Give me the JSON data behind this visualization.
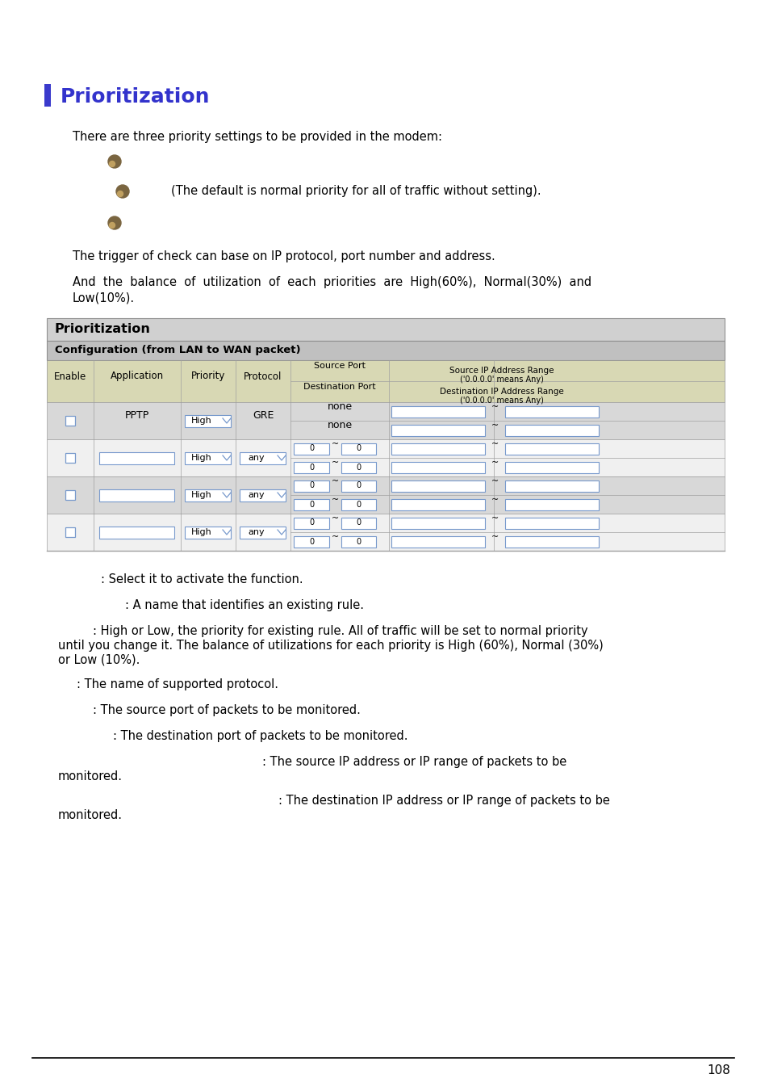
{
  "title": "Prioritization",
  "title_color": "#3333cc",
  "title_marker_color": "#3a3acc",
  "bg_color": "#ffffff",
  "page_number": "108",
  "body_font_size": 10.5,
  "intro_text": "There are three priority settings to be provided in the modem:",
  "bullet_text_2": "(The default is normal priority for all of traffic without setting).",
  "para1": "The trigger of check can base on IP protocol, port number and address.",
  "para2_line1": "And  the  balance  of  utilization  of  each  priorities  are  High(60%),  Normal(30%)  and",
  "para2_line2": "Low(10%).",
  "table_title": "Prioritization",
  "table_subtitle": "Configuration (from LAN to WAN packet)",
  "table_title_bg": "#d0d0d0",
  "table_subtitle_bg": "#c0c0c0",
  "table_header_bg": "#d8d8b4",
  "table_row_bg_odd": "#e0e0e0",
  "table_row_bg_even": "#f0f0f0",
  "table_border_color": "#a0a0a0",
  "input_border_color": "#7799cc",
  "desc_lines": [
    ": Select it to activate the function.",
    ": A name that identifies an existing rule.",
    ": High or Low, the priority for existing rule. All of traffic will be set to normal priority\nuntil you change it. The balance of utilizations for each priority is High (60%), Normal (30%)\nor Low (10%).",
    ": The name of supported protocol.",
    ": The source port of packets to be monitored.",
    ": The destination port of packets to be monitored.",
    ": The source IP address or IP range of packets to be\nmonitored.",
    ": The destination IP address or IP range of packets to be\nmonitored."
  ],
  "desc_x_offsets": [
    1.25,
    1.55,
    1.15,
    0.95,
    1.15,
    1.4,
    3.25,
    3.45
  ],
  "desc_indent_2nd_line": [
    0.72,
    0.72,
    0.72,
    0.72,
    0.72,
    0.72,
    0.72,
    0.72
  ]
}
